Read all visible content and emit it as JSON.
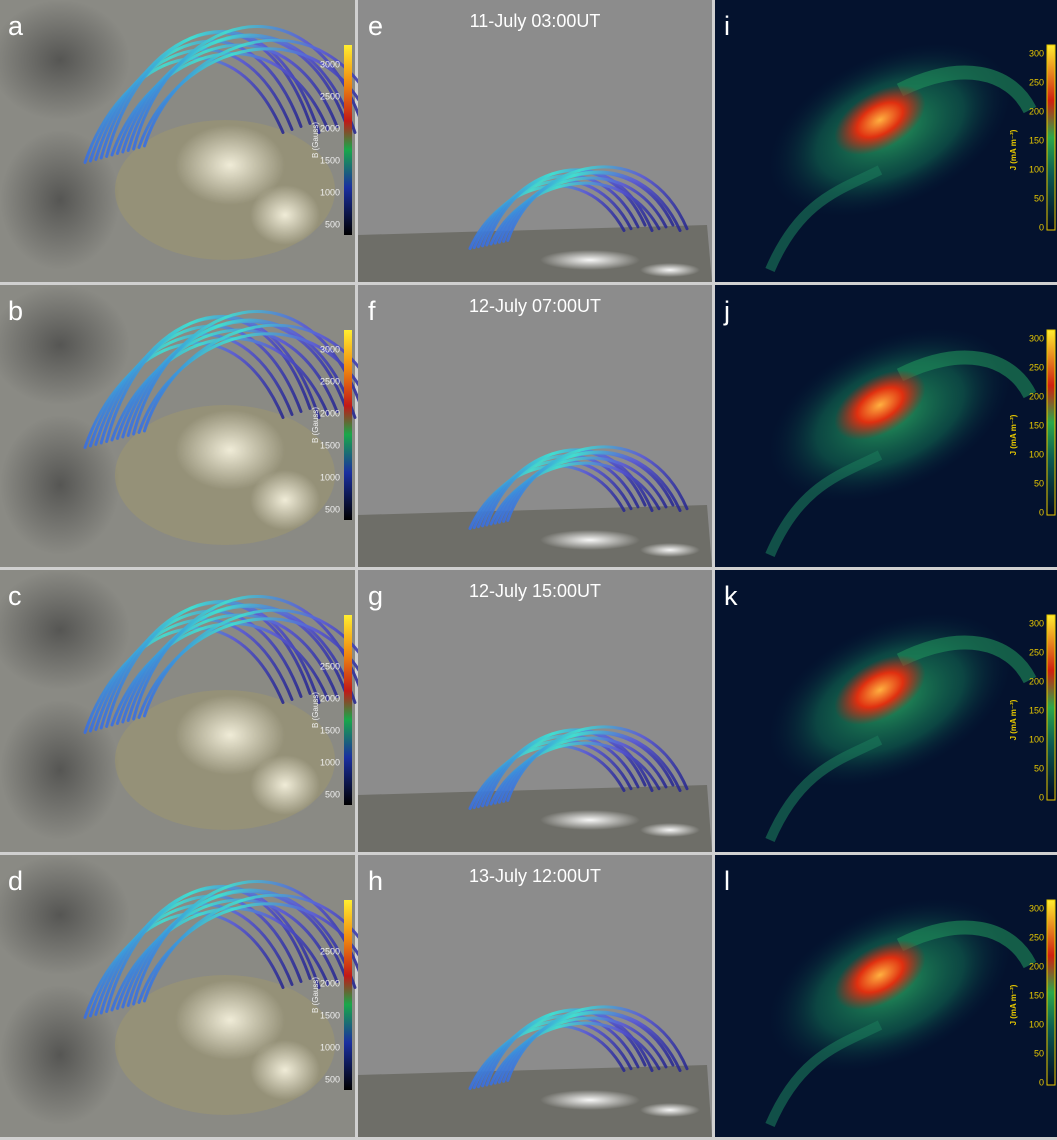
{
  "rows": [
    {
      "field": {
        "letter": "a",
        "colorbar_label": "B (Gauss)",
        "colorbar_ticks": [
          500,
          1000,
          1500,
          2000,
          2500,
          3000
        ]
      },
      "side": {
        "letter": "e",
        "time": "11-July 03:00UT"
      },
      "current": {
        "letter": "i",
        "colorbar_label": "J (mA m⁻²)",
        "colorbar_ticks": [
          0,
          50,
          100,
          150,
          200,
          250,
          300
        ]
      }
    },
    {
      "field": {
        "letter": "b",
        "colorbar_label": "B (Gauss)",
        "colorbar_ticks": [
          500,
          1000,
          1500,
          2000,
          2500,
          3000
        ]
      },
      "side": {
        "letter": "f",
        "time": "12-July 07:00UT"
      },
      "current": {
        "letter": "j",
        "colorbar_label": "J (mA m⁻²)",
        "colorbar_ticks": [
          0,
          50,
          100,
          150,
          200,
          250,
          300
        ]
      }
    },
    {
      "field": {
        "letter": "c",
        "colorbar_label": "B (Gauss)",
        "colorbar_ticks": [
          500,
          1000,
          1500,
          2000,
          2500
        ]
      },
      "side": {
        "letter": "g",
        "time": "12-July 15:00UT"
      },
      "current": {
        "letter": "k",
        "colorbar_label": "J (mA m⁻²)",
        "colorbar_ticks": [
          0,
          50,
          100,
          150,
          200,
          250,
          300
        ]
      }
    },
    {
      "field": {
        "letter": "d",
        "colorbar_label": "B (Gauss)",
        "colorbar_ticks": [
          500,
          1000,
          1500,
          2000,
          2500
        ]
      },
      "side": {
        "letter": "h",
        "time": "13-July 12:00UT"
      },
      "current": {
        "letter": "l",
        "colorbar_label": "J (mA m⁻²)",
        "colorbar_ticks": [
          0,
          50,
          100,
          150,
          200,
          250,
          300
        ]
      }
    }
  ]
}
